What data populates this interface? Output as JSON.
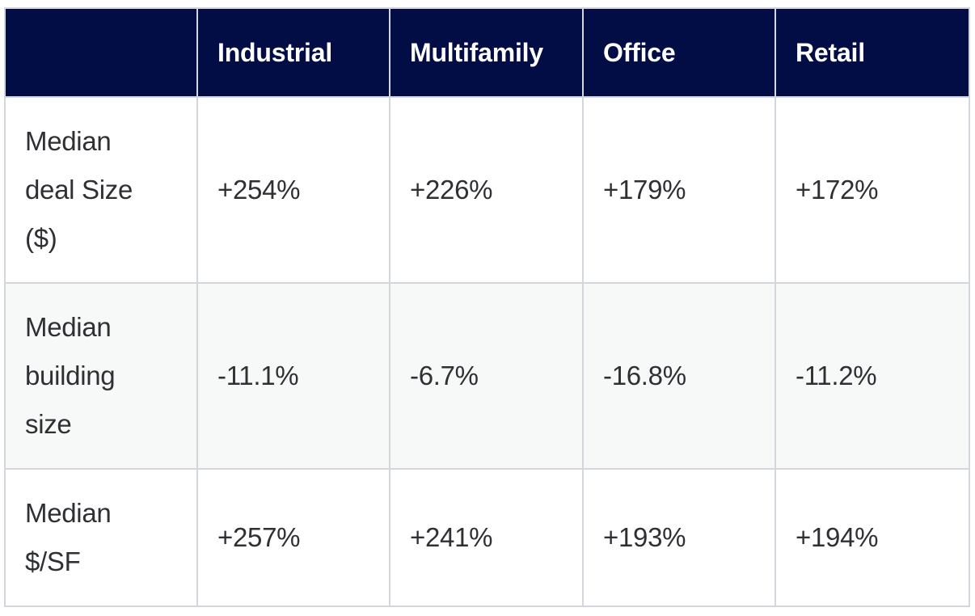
{
  "table": {
    "header": {
      "corner": "",
      "columns": [
        "Industrial",
        "Multifamily",
        "Office",
        "Retail"
      ]
    },
    "rows": [
      {
        "label": "Median deal Size ($)",
        "values": [
          "+254%",
          "+226%",
          "+179%",
          "+172%"
        ]
      },
      {
        "label": "Median building size",
        "values": [
          "-11.1%",
          "-6.7%",
          "-16.8%",
          "-11.2%"
        ]
      },
      {
        "label": "Median $/SF",
        "values": [
          "+257%",
          "+241%",
          "+193%",
          "+194%"
        ]
      }
    ]
  },
  "colors": {
    "header_bg": "#020d45",
    "header_text": "#ffffff",
    "body_text": "#2e3034",
    "border": "#d3d6da",
    "alt_row_bg": "#f7f8f8"
  }
}
